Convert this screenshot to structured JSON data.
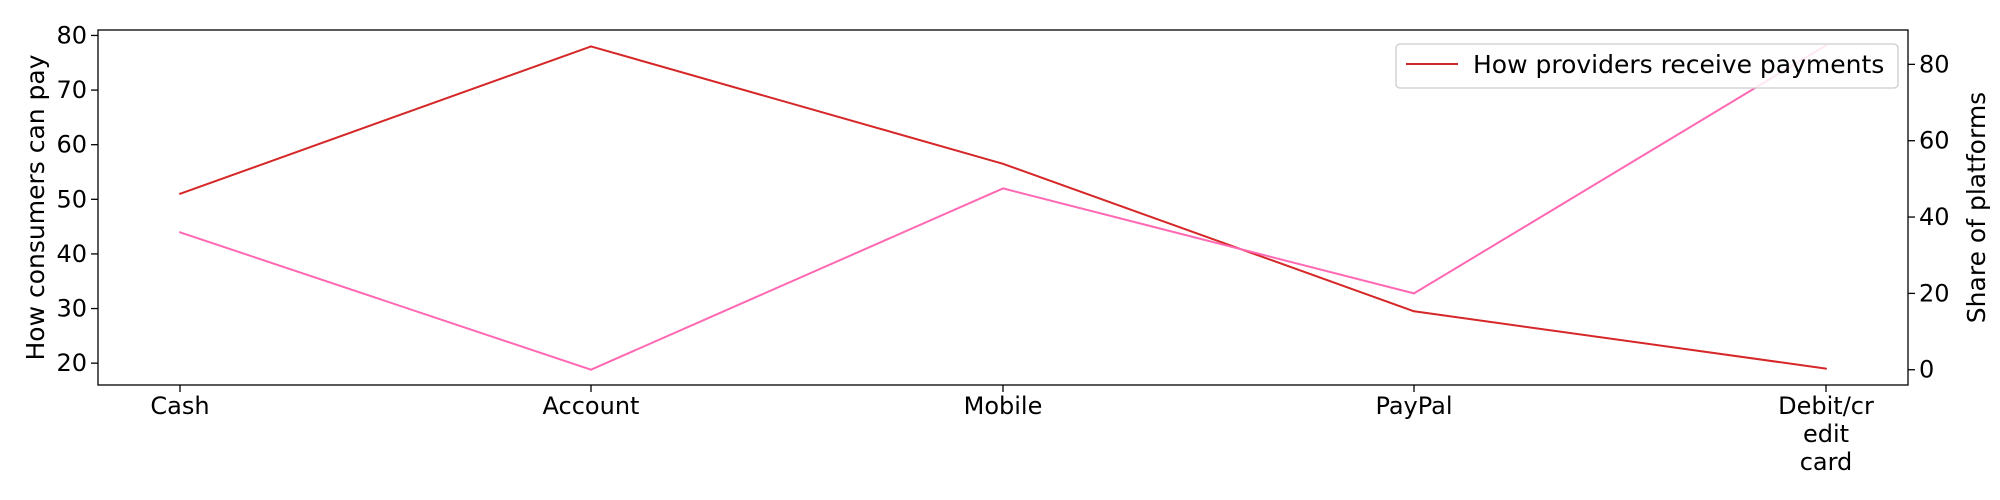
{
  "chart_data": {
    "type": "line",
    "categories": [
      "Cash",
      "Account",
      "Mobile",
      "PayPal",
      "Debit/credit card"
    ],
    "category_tick_lines": [
      [
        "Cash"
      ],
      [
        "Account"
      ],
      [
        "Mobile"
      ],
      [
        "PayPal"
      ],
      [
        "Debit/cr",
        "edit",
        "card"
      ]
    ],
    "y_left": {
      "label": "How consumers can pay",
      "ylim": [
        16,
        81
      ],
      "ticks": [
        20,
        30,
        40,
        50,
        60,
        70,
        80
      ]
    },
    "y_right": {
      "label": "Share of platforms",
      "ylim": [
        -4,
        89
      ],
      "ticks": [
        0,
        20,
        40,
        60,
        80
      ]
    },
    "series": [
      {
        "name": "How providers receive payments",
        "axis": "left",
        "color": "#d62728",
        "values": [
          51,
          78,
          56.5,
          29.5,
          19
        ]
      },
      {
        "name": "",
        "axis": "right",
        "color": "#ff69b4",
        "values": [
          36,
          0,
          47.5,
          20,
          85
        ]
      }
    ],
    "legend": {
      "placement": "top-right"
    },
    "grid": false
  }
}
